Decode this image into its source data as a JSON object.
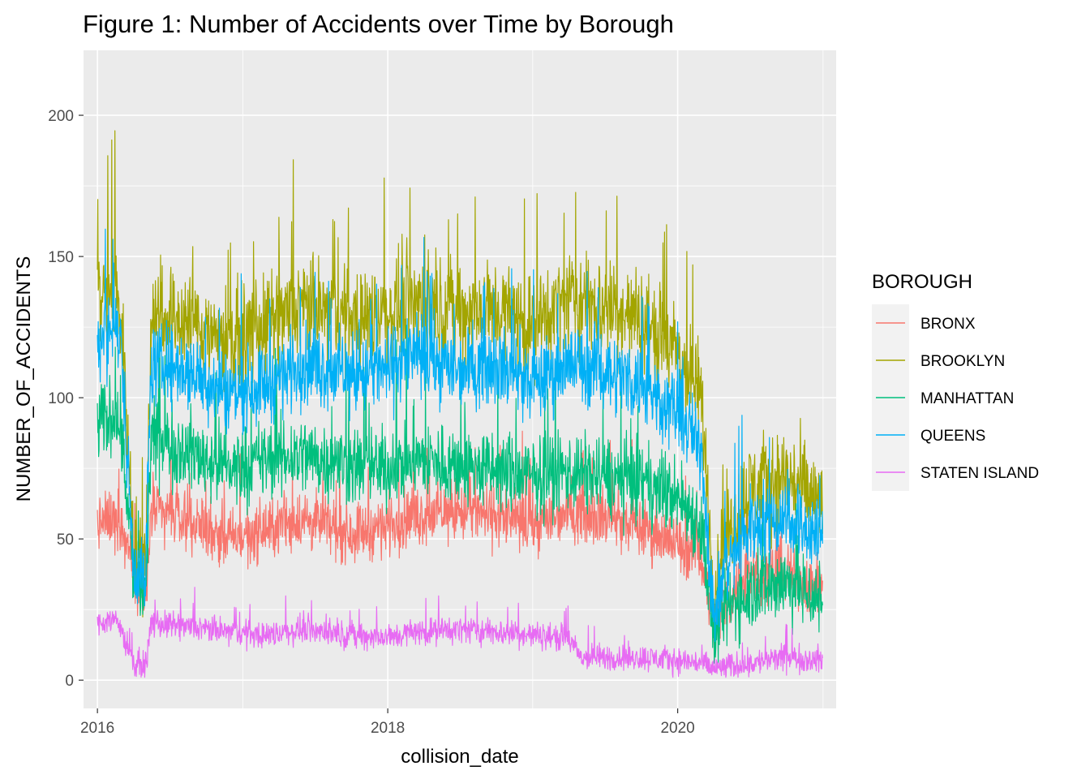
{
  "chart_data": {
    "type": "line",
    "title": "Figure 1: Number of Accidents over Time by Borough",
    "xlabel": "collision_date",
    "ylabel": "NUMBER_OF_ACCIDENTS",
    "x_ticks": [
      "2016",
      "2018",
      "2020"
    ],
    "y_ticks": [
      "0",
      "50",
      "100",
      "150",
      "200"
    ],
    "xlim": [
      "2015-11-27",
      "2021-02-03"
    ],
    "ylim": [
      -10,
      223
    ],
    "grid": true,
    "legend": {
      "title": "BOROUGH",
      "placement": "right"
    },
    "series": [
      {
        "name": "BRONX",
        "color": "#F8766D",
        "x": [
          "2016-01-01",
          "2016-02-15",
          "2016-03-01",
          "2016-04-01",
          "2016-05-01",
          "2016-05-15",
          "2016-08-01",
          "2016-12-01",
          "2017-03-01",
          "2017-06-01",
          "2017-10-01",
          "2018-01-01",
          "2018-03-01",
          "2018-07-01",
          "2018-10-01",
          "2019-01-01",
          "2019-04-01",
          "2019-07-01",
          "2019-10-01",
          "2020-01-01",
          "2020-03-01",
          "2020-04-01",
          "2020-05-01",
          "2020-07-01",
          "2020-10-01",
          "2020-12-31"
        ],
        "values": [
          55,
          58,
          55,
          42,
          25,
          60,
          58,
          50,
          53,
          57,
          52,
          55,
          58,
          60,
          58,
          55,
          60,
          58,
          54,
          48,
          45,
          18,
          28,
          38,
          38,
          32
        ],
        "noise": 9
      },
      {
        "name": "BROOKLYN",
        "color": "#A3A500",
        "x": [
          "2016-01-01",
          "2016-02-15",
          "2016-03-01",
          "2016-04-01",
          "2016-05-01",
          "2016-05-15",
          "2016-08-01",
          "2016-12-01",
          "2017-03-01",
          "2017-06-01",
          "2017-10-01",
          "2018-01-01",
          "2018-03-01",
          "2018-07-01",
          "2018-10-01",
          "2019-01-01",
          "2019-04-01",
          "2019-07-01",
          "2019-10-01",
          "2020-01-01",
          "2020-03-01",
          "2020-04-01",
          "2020-05-01",
          "2020-07-01",
          "2020-10-01",
          "2020-12-31"
        ],
        "values": [
          135,
          140,
          128,
          48,
          40,
          130,
          128,
          120,
          125,
          132,
          128,
          130,
          135,
          130,
          132,
          125,
          135,
          132,
          128,
          115,
          100,
          30,
          52,
          68,
          72,
          62
        ],
        "noise": 15
      },
      {
        "name": "MANHATTAN",
        "color": "#00BF7D",
        "x": [
          "2016-01-01",
          "2016-02-15",
          "2016-03-01",
          "2016-04-01",
          "2016-05-01",
          "2016-05-15",
          "2016-08-01",
          "2016-12-01",
          "2017-03-01",
          "2017-06-01",
          "2017-10-01",
          "2018-01-01",
          "2018-03-01",
          "2018-07-01",
          "2018-10-01",
          "2019-01-01",
          "2019-04-01",
          "2019-07-01",
          "2019-10-01",
          "2020-01-01",
          "2020-03-01",
          "2020-04-01",
          "2020-05-01",
          "2020-07-01",
          "2020-10-01",
          "2020-12-31"
        ],
        "values": [
          90,
          95,
          90,
          38,
          28,
          85,
          82,
          75,
          78,
          80,
          76,
          75,
          78,
          76,
          74,
          72,
          74,
          72,
          70,
          65,
          55,
          15,
          25,
          32,
          35,
          28
        ],
        "noise": 12
      },
      {
        "name": "QUEENS",
        "color": "#00B0F6",
        "x": [
          "2016-01-01",
          "2016-02-15",
          "2016-03-01",
          "2016-04-01",
          "2016-05-01",
          "2016-05-15",
          "2016-08-01",
          "2016-12-01",
          "2017-03-01",
          "2017-06-01",
          "2017-10-01",
          "2018-01-01",
          "2018-03-01",
          "2018-07-01",
          "2018-10-01",
          "2019-01-01",
          "2019-04-01",
          "2019-07-01",
          "2019-10-01",
          "2020-01-01",
          "2020-03-01",
          "2020-04-01",
          "2020-05-01",
          "2020-07-01",
          "2020-10-01",
          "2020-12-31"
        ],
        "values": [
          120,
          125,
          118,
          42,
          35,
          112,
          110,
          102,
          105,
          112,
          108,
          110,
          115,
          110,
          112,
          105,
          112,
          110,
          105,
          95,
          82,
          22,
          40,
          55,
          58,
          50
        ],
        "noise": 12
      },
      {
        "name": "STATEN ISLAND",
        "color": "#E76BF3",
        "x": [
          "2016-01-01",
          "2016-02-15",
          "2016-03-01",
          "2016-04-01",
          "2016-05-01",
          "2016-05-15",
          "2016-08-01",
          "2016-12-01",
          "2017-03-01",
          "2017-06-01",
          "2017-10-01",
          "2018-01-01",
          "2018-03-01",
          "2018-07-01",
          "2018-10-01",
          "2019-01-01",
          "2019-04-01",
          "2019-05-01",
          "2019-07-01",
          "2019-10-01",
          "2020-01-01",
          "2020-03-01",
          "2020-04-01",
          "2020-07-01",
          "2020-10-01",
          "2020-12-31"
        ],
        "values": [
          20,
          22,
          18,
          6,
          5,
          20,
          19,
          17,
          16,
          18,
          16,
          15,
          17,
          18,
          17,
          16,
          15,
          8,
          8,
          8,
          7,
          6,
          4,
          6,
          8,
          7
        ],
        "noise": 4
      }
    ]
  }
}
